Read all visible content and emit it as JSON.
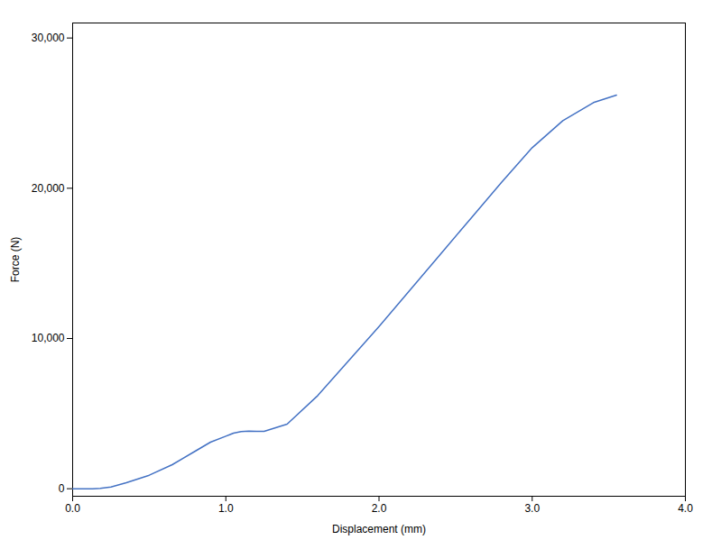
{
  "chart_data": {
    "type": "line",
    "x": [
      0.0,
      0.05,
      0.1,
      0.13,
      0.18,
      0.25,
      0.35,
      0.5,
      0.65,
      0.8,
      0.9,
      1.0,
      1.05,
      1.1,
      1.15,
      1.2,
      1.25,
      1.4,
      1.6,
      1.8,
      2.0,
      2.2,
      2.4,
      2.6,
      2.8,
      3.0,
      3.2,
      3.4,
      3.55
    ],
    "values": [
      0,
      0,
      0,
      0,
      30,
      120,
      400,
      900,
      1600,
      2500,
      3100,
      3500,
      3700,
      3800,
      3830,
      3820,
      3820,
      4300,
      6200,
      8500,
      10800,
      13200,
      15600,
      18000,
      20400,
      22700,
      24500,
      25700,
      26200
    ],
    "color": "#4472C4",
    "xlabel": "Displacement (mm)",
    "ylabel": "Force (N)",
    "xlim": [
      0.0,
      4.0
    ],
    "ylim": [
      -500,
      31000
    ],
    "xticks": [
      {
        "value": 0.0,
        "label": "0.0"
      },
      {
        "value": 1.0,
        "label": "1.0"
      },
      {
        "value": 2.0,
        "label": "2.0"
      },
      {
        "value": 3.0,
        "label": "3.0"
      },
      {
        "value": 4.0,
        "label": "4.0"
      }
    ],
    "yticks": [
      0,
      {
        "value": 10000,
        "label": "10,000"
      },
      {
        "value": 20000,
        "label": "20,000"
      },
      {
        "value": 30000,
        "label": "30,000"
      }
    ],
    "grid": false
  }
}
